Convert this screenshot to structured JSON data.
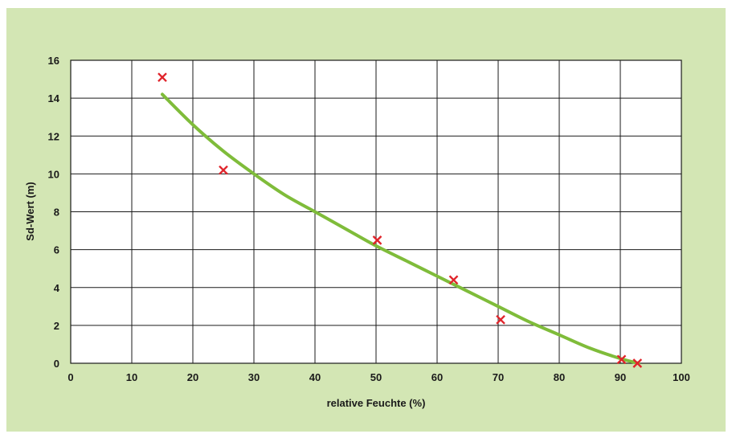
{
  "chart_data": {
    "type": "scatter",
    "xlabel": "relative Feuchte (%)",
    "ylabel": "Sd-Wert (m)",
    "xlim": [
      0,
      100
    ],
    "ylim": [
      0,
      16
    ],
    "xticks": [
      0,
      10,
      20,
      30,
      40,
      50,
      60,
      70,
      80,
      90,
      100
    ],
    "yticks": [
      0,
      2,
      4,
      6,
      8,
      10,
      12,
      14,
      16
    ],
    "grid": true,
    "series": [
      {
        "type": "scatter",
        "marker": "x",
        "color": "#e0242b",
        "points": [
          {
            "x": 15,
            "y": 15.1
          },
          {
            "x": 25,
            "y": 10.2
          },
          {
            "x": 50.2,
            "y": 6.5
          },
          {
            "x": 62.7,
            "y": 4.4
          },
          {
            "x": 70.4,
            "y": 2.3
          },
          {
            "x": 90.2,
            "y": 0.2
          },
          {
            "x": 92.8,
            "y": 0.0
          }
        ]
      },
      {
        "type": "line",
        "color": "#7fbc3a",
        "points": [
          {
            "x": 15,
            "y": 14.2
          },
          {
            "x": 20,
            "y": 12.6
          },
          {
            "x": 25,
            "y": 11.2
          },
          {
            "x": 30,
            "y": 10.0
          },
          {
            "x": 35,
            "y": 8.9
          },
          {
            "x": 40,
            "y": 8.0
          },
          {
            "x": 45,
            "y": 7.1
          },
          {
            "x": 50,
            "y": 6.2
          },
          {
            "x": 55,
            "y": 5.4
          },
          {
            "x": 60,
            "y": 4.6
          },
          {
            "x": 65,
            "y": 3.8
          },
          {
            "x": 70,
            "y": 3.0
          },
          {
            "x": 75,
            "y": 2.2
          },
          {
            "x": 80,
            "y": 1.5
          },
          {
            "x": 85,
            "y": 0.8
          },
          {
            "x": 90,
            "y": 0.25
          },
          {
            "x": 93,
            "y": 0.0
          }
        ]
      }
    ]
  }
}
